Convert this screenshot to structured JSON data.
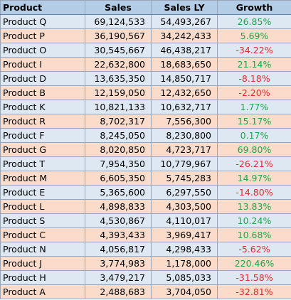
{
  "table": {
    "columns": [
      "Product",
      "Sales",
      "Sales LY",
      "Growth"
    ],
    "rows": [
      {
        "product": "Product Q",
        "sales": "69,124,533",
        "sales_ly": "54,493,267",
        "growth": "26.85%",
        "trend": "positive"
      },
      {
        "product": "Product P",
        "sales": "36,190,567",
        "sales_ly": "34,242,433",
        "growth": "5.69%",
        "trend": "positive"
      },
      {
        "product": "Product O",
        "sales": "30,545,667",
        "sales_ly": "46,438,217",
        "growth": "-34.22%",
        "trend": "negative"
      },
      {
        "product": "Product I",
        "sales": "22,632,800",
        "sales_ly": "18,683,650",
        "growth": "21.14%",
        "trend": "positive"
      },
      {
        "product": "Product D",
        "sales": "13,635,350",
        "sales_ly": "14,850,717",
        "growth": "-8.18%",
        "trend": "negative"
      },
      {
        "product": "Product B",
        "sales": "12,159,050",
        "sales_ly": "12,432,650",
        "growth": "-2.20%",
        "trend": "negative"
      },
      {
        "product": "Product K",
        "sales": "10,821,133",
        "sales_ly": "10,632,717",
        "growth": "1.77%",
        "trend": "positive"
      },
      {
        "product": "Product R",
        "sales": "8,702,317",
        "sales_ly": "7,556,300",
        "growth": "15.17%",
        "trend": "positive"
      },
      {
        "product": "Product F",
        "sales": "8,245,050",
        "sales_ly": "8,230,800",
        "growth": "0.17%",
        "trend": "positive"
      },
      {
        "product": "Product G",
        "sales": "8,020,850",
        "sales_ly": "4,723,717",
        "growth": "69.80%",
        "trend": "positive"
      },
      {
        "product": "Product T",
        "sales": "7,954,350",
        "sales_ly": "10,779,967",
        "growth": "-26.21%",
        "trend": "negative"
      },
      {
        "product": "Product M",
        "sales": "6,605,350",
        "sales_ly": "5,745,283",
        "growth": "14.97%",
        "trend": "positive"
      },
      {
        "product": "Product E",
        "sales": "5,365,600",
        "sales_ly": "6,297,550",
        "growth": "-14.80%",
        "trend": "negative"
      },
      {
        "product": "Product L",
        "sales": "4,898,833",
        "sales_ly": "4,303,500",
        "growth": "13.83%",
        "trend": "positive"
      },
      {
        "product": "Product S",
        "sales": "4,530,867",
        "sales_ly": "4,110,017",
        "growth": "10.24%",
        "trend": "positive"
      },
      {
        "product": "Product C",
        "sales": "4,393,433",
        "sales_ly": "3,969,417",
        "growth": "10.68%",
        "trend": "positive"
      },
      {
        "product": "Product N",
        "sales": "4,056,817",
        "sales_ly": "4,298,433",
        "growth": "-5.62%",
        "trend": "negative"
      },
      {
        "product": "Product J",
        "sales": "3,774,983",
        "sales_ly": "1,178,000",
        "growth": "220.46%",
        "trend": "positive"
      },
      {
        "product": "Product H",
        "sales": "3,479,217",
        "sales_ly": "5,085,033",
        "growth": "-31.58%",
        "trend": "negative"
      },
      {
        "product": "Product A",
        "sales": "2,488,683",
        "sales_ly": "3,704,050",
        "growth": "-32.81%",
        "trend": "negative"
      }
    ]
  },
  "colors": {
    "header_bg": "#b3cde6",
    "row_band_blue": "#dde8f3",
    "row_band_peach": "#fbdccb",
    "growth_positive": "#16a849",
    "growth_negative": "#e8262b"
  }
}
